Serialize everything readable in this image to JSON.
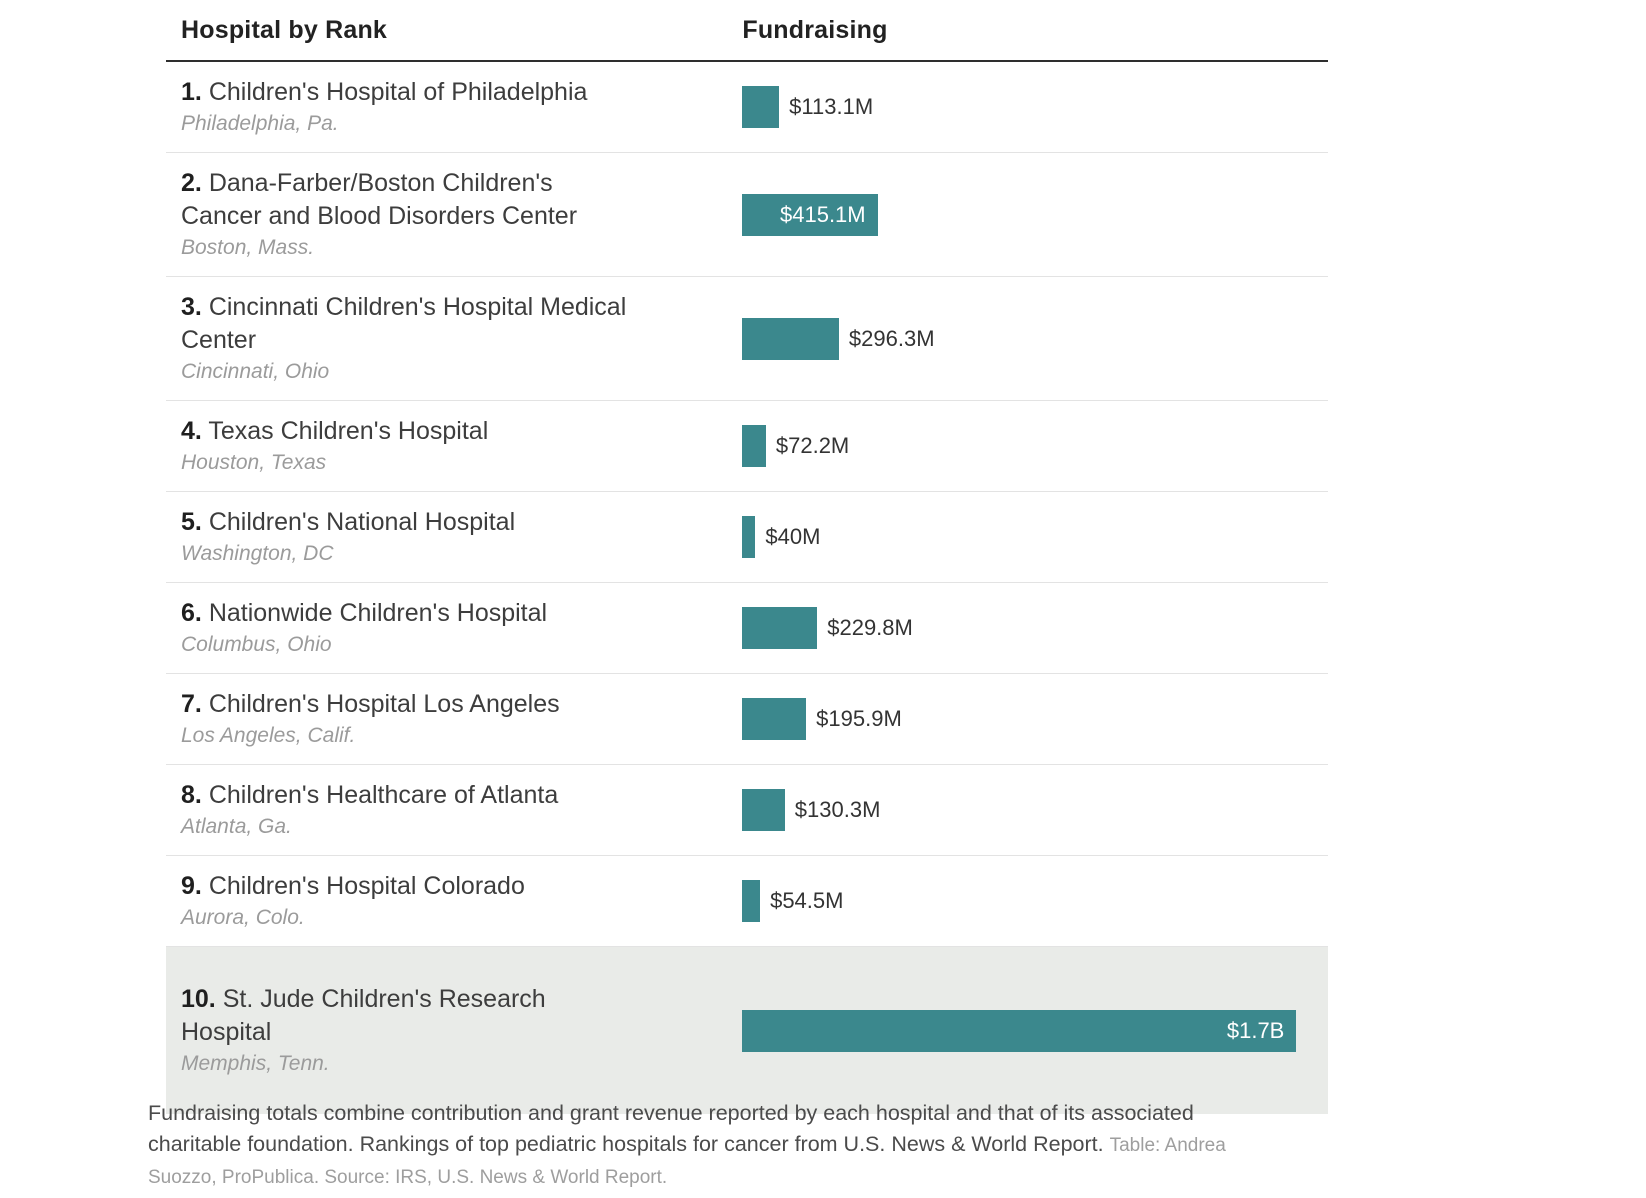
{
  "colors": {
    "bar_teal": "#3b888d",
    "highlight_row_bg": "#e9ebe8",
    "divider": "#e3e3e3",
    "header_rule": "#2e2e2e",
    "inside_label_text": "#ffffff"
  },
  "table_header": {
    "col1": "Hospital by Rank",
    "col2": "Fundraising"
  },
  "chart_data": {
    "type": "bar",
    "orientation": "horizontal",
    "title": "",
    "xlabel": "Fundraising",
    "ylabel": "Hospital by Rank",
    "xlim": [
      0,
      1700
    ],
    "grid": false,
    "legend": false,
    "unit": "millions USD",
    "ranks": [
      "1.",
      "2.",
      "3.",
      "4.",
      "5.",
      "6.",
      "7.",
      "8.",
      "9.",
      "10."
    ],
    "categories": [
      "Children's Hospital of Philadelphia",
      "Dana-Farber/Boston Children's Cancer and Blood Disorders Center",
      "Cincinnati Children's Hospital Medical Center",
      "Texas Children's Hospital",
      "Children's National Hospital",
      "Nationwide Children's Hospital",
      "Children's Hospital Los Angeles",
      "Children's Healthcare of Atlanta",
      "Children's Hospital Colorado",
      "St. Jude Children's Research Hospital"
    ],
    "locations": [
      "Philadelphia, Pa.",
      "Boston, Mass.",
      "Cincinnati, Ohio",
      "Houston, Texas",
      "Washington, DC",
      "Columbus, Ohio",
      "Los Angeles, Calif.",
      "Atlanta, Ga.",
      "Aurora, Colo.",
      "Memphis, Tenn."
    ],
    "values": [
      113.1,
      415.1,
      296.3,
      72.2,
      40,
      229.8,
      195.9,
      130.3,
      54.5,
      1700
    ],
    "value_labels": [
      "$113.1M",
      "$415.1M",
      "$296.3M",
      "$72.2M",
      "$40M",
      "$229.8M",
      "$195.9M",
      "$130.3M",
      "$54.5M",
      "$1.7B"
    ],
    "labels_inside": [
      false,
      true,
      false,
      false,
      false,
      false,
      false,
      false,
      false,
      true
    ],
    "highlighted_index": 9
  },
  "footer": {
    "note": "Fundraising totals combine contribution and grant revenue reported by each hospital and that of its associated charitable foundation. Rankings of top pediatric hospitals for cancer from U.S. News & World Report.",
    "credit": "Table: Andrea Suozzo, ProPublica. Source: IRS, U.S. News & World Report."
  }
}
